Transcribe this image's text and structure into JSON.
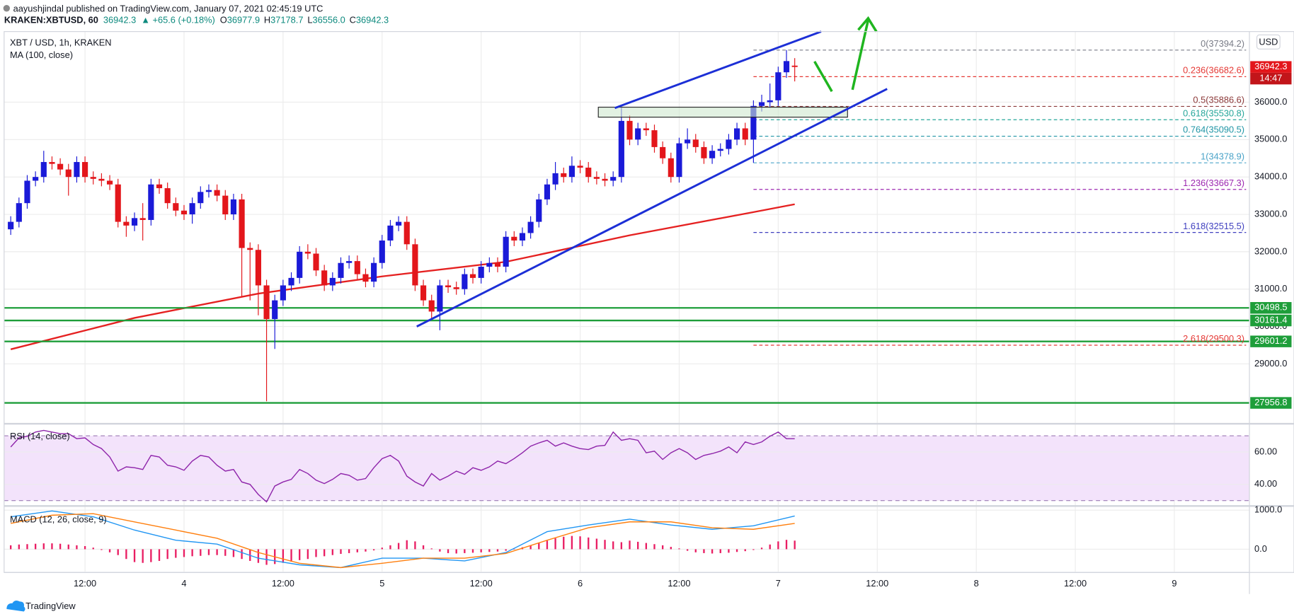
{
  "header": {
    "publisher": "aayushjindal published on TradingView.com, January 07, 2021 02:45:19 UTC",
    "symbol": "KRAKEN:XBTUSD, 60",
    "last": "36942.3",
    "change": "▲ +65.6 (+0.18%)",
    "ohlc": [
      {
        "key": "O",
        "value": "36977.9"
      },
      {
        "key": "H",
        "value": "37178.7"
      },
      {
        "key": "L",
        "value": "36556.0"
      },
      {
        "key": "C",
        "value": "36942.3"
      }
    ]
  },
  "footer": {
    "brand": "TradingView"
  },
  "chart_data": [
    {
      "type": "candlestick",
      "title": "XBT / USD, 1h, KRAKEN",
      "currency": "USD",
      "up_color": "#1a1ad8",
      "down_color": "#e3161b",
      "xlim": [
        -0.8,
        150.1
      ],
      "xticks": [
        {
          "value": 9,
          "label": "12:00"
        },
        {
          "value": 21,
          "label": "4"
        },
        {
          "value": 33,
          "label": "12:00"
        },
        {
          "value": 45,
          "label": "5"
        },
        {
          "value": 57,
          "label": "12:00"
        },
        {
          "value": 69,
          "label": "6"
        },
        {
          "value": 81,
          "label": "12:00"
        },
        {
          "value": 93,
          "label": "7"
        },
        {
          "value": 105,
          "label": "12:00"
        },
        {
          "value": 117,
          "label": "8"
        },
        {
          "value": 129,
          "label": "12:00"
        },
        {
          "value": 141,
          "label": "9"
        }
      ],
      "ylim": [
        27844,
        37889
      ],
      "yticks": [
        {
          "value": 36000,
          "label": "36000.0"
        },
        {
          "value": 35000,
          "label": "35000.0"
        },
        {
          "value": 34000,
          "label": "34000.0"
        },
        {
          "value": 33000,
          "label": "33000.0"
        },
        {
          "value": 32000,
          "label": "32000.0"
        },
        {
          "value": 31000,
          "label": "31000.0"
        },
        {
          "value": 30000,
          "label": "30000.0"
        },
        {
          "value": 29000,
          "label": "29000.0"
        }
      ],
      "grid": true,
      "open": [
        32600,
        32800,
        33300,
        33900,
        34000,
        34400,
        34350,
        34200,
        34000,
        34400,
        34000,
        33950,
        33900,
        33800,
        32800,
        32700,
        32900,
        32850,
        33800,
        33700,
        33300,
        33100,
        33000,
        33300,
        33600,
        33650,
        33500,
        33000,
        33400,
        32100,
        32050,
        31100,
        30200,
        30700,
        31100,
        31300,
        32000,
        31950,
        31500,
        31100,
        31300,
        31700,
        31750,
        31400,
        31200,
        31700,
        32300,
        32700,
        32800,
        32200,
        31100,
        30700,
        30400,
        31100,
        31050,
        31000,
        31400,
        31300,
        31600,
        31700,
        31600,
        32400,
        32300,
        32500,
        32800,
        33400,
        33800,
        34100,
        34000,
        34300,
        34250,
        34000,
        33950,
        33900,
        34000,
        35500,
        35000,
        35300,
        35250,
        34800,
        34500,
        34000,
        34900,
        35000,
        34800,
        34500,
        34700,
        34750,
        35000,
        35300,
        35000,
        35900,
        36000,
        36050,
        36800,
        36977.9
      ],
      "high": [
        32950,
        33450,
        34050,
        34150,
        34700,
        34550,
        34500,
        34350,
        34550,
        34550,
        34150,
        34100,
        34050,
        33950,
        32950,
        33050,
        33300,
        33950,
        33950,
        33850,
        33450,
        33250,
        33450,
        33750,
        33800,
        33800,
        33650,
        33550,
        33550,
        32250,
        32200,
        31250,
        30850,
        31250,
        31450,
        32150,
        32200,
        32100,
        31650,
        31450,
        31850,
        31900,
        31900,
        31550,
        31850,
        32450,
        32850,
        32950,
        32950,
        32350,
        31250,
        30850,
        31250,
        31250,
        31200,
        31550,
        31550,
        31750,
        31850,
        31850,
        32550,
        32550,
        32650,
        32950,
        33550,
        33950,
        34400,
        34250,
        34550,
        34450,
        34400,
        34150,
        34100,
        34150,
        35850,
        35650,
        35450,
        35450,
        35400,
        34950,
        34650,
        35050,
        35300,
        35150,
        34950,
        34850,
        34900,
        35150,
        35450,
        35450,
        36050,
        36200,
        36500,
        36950,
        37394.2,
        37178.7
      ],
      "low": [
        32450,
        32650,
        33150,
        33750,
        33850,
        34200,
        34050,
        33500,
        33850,
        33850,
        33800,
        33750,
        33650,
        32650,
        32400,
        32550,
        32300,
        32700,
        33550,
        33150,
        32950,
        32850,
        32750,
        33150,
        33450,
        33350,
        32850,
        32850,
        30800,
        30700,
        30300,
        28000,
        29400,
        30550,
        30950,
        31150,
        31800,
        31350,
        30950,
        30950,
        31150,
        31550,
        31250,
        31050,
        31050,
        31550,
        32150,
        32550,
        32050,
        30950,
        30550,
        30200,
        29900,
        30900,
        30850,
        30850,
        31150,
        31150,
        31450,
        31450,
        31450,
        32150,
        32150,
        32350,
        32650,
        33250,
        33650,
        33850,
        33850,
        34100,
        33850,
        33800,
        33750,
        33750,
        33850,
        34850,
        34850,
        35100,
        34650,
        34350,
        33850,
        33850,
        34750,
        34650,
        34350,
        34350,
        34550,
        34600,
        34850,
        34850,
        34378.9,
        35750,
        35850,
        35900,
        36650,
        36556.0
      ],
      "close": [
        32800,
        33300,
        33900,
        34000,
        34400,
        34350,
        34200,
        34000,
        34400,
        34000,
        33950,
        33900,
        33800,
        32800,
        32700,
        32900,
        32850,
        33800,
        33700,
        33300,
        33100,
        33000,
        33300,
        33600,
        33650,
        33500,
        33000,
        33400,
        32100,
        32050,
        31100,
        30200,
        30700,
        31100,
        31300,
        32000,
        31950,
        31500,
        31100,
        31300,
        31700,
        31750,
        31400,
        31200,
        31700,
        32300,
        32700,
        32800,
        32200,
        31100,
        30700,
        30400,
        31100,
        31050,
        31000,
        31400,
        31300,
        31600,
        31700,
        31600,
        32400,
        32300,
        32500,
        32800,
        33400,
        33800,
        34100,
        34000,
        34300,
        34250,
        34000,
        33950,
        33900,
        34000,
        35500,
        35000,
        35300,
        35250,
        34800,
        34500,
        34000,
        34900,
        35000,
        34800,
        34500,
        34700,
        34750,
        35000,
        35300,
        35000,
        35900,
        36000,
        36050,
        36800,
        37100,
        36942.3
      ],
      "overlays": [
        {
          "name": "MA (100, close)",
          "color": "#e52121",
          "x": [
            0,
            15,
            30,
            45,
            60,
            75,
            90,
            95
          ],
          "values": [
            29390,
            30230,
            30880,
            31340,
            31730,
            32440,
            33060,
            33270
          ]
        }
      ],
      "levels": [
        30498.5,
        30161.4,
        29601.2,
        27956.8
      ],
      "level_color": "#1e9e3a",
      "fib_levels": [
        {
          "value": 37394.2,
          "label": "0(37394.2)",
          "color": "#787b86"
        },
        {
          "value": 36682.6,
          "label": "0.236(36682.6)",
          "color": "#e53935"
        },
        {
          "value": 35886.6,
          "label": "0.5(35886.6)",
          "color": "#8d3b3b"
        },
        {
          "value": 35530.8,
          "label": "0.618(35530.8)",
          "color": "#26a69a"
        },
        {
          "value": 35090.5,
          "label": "0.764(35090.5)",
          "color": "#2196a6"
        },
        {
          "value": 34378.9,
          "label": "1(34378.9)",
          "color": "#4aa3c8"
        },
        {
          "value": 33667.3,
          "label": "1.236(33667.3)",
          "color": "#9c27b0"
        },
        {
          "value": 32515.5,
          "label": "1.618(32515.5)",
          "color": "#3f3fbf"
        },
        {
          "value": 29500.3,
          "label": "2.618(29500.3)",
          "color": "#e53935"
        }
      ],
      "fib_start": 90,
      "last_price": 36942.3,
      "countdown": "14:47"
    },
    {
      "type": "line",
      "title": "RSI (14, close)",
      "color": "#8e24aa",
      "ylim": [
        27.7,
        76.4
      ],
      "yticks": [
        {
          "value": 60,
          "label": "60.00"
        },
        {
          "value": 40,
          "label": "40.00"
        }
      ],
      "bands": [
        30,
        70
      ],
      "band_color": "#f3e3fb",
      "values": [
        63.1,
        68.7,
        69.7,
        72.3,
        73.3,
        72.3,
        71.3,
        71.3,
        68.2,
        68.7,
        64.6,
        62.1,
        56.9,
        48.2,
        50.8,
        50.3,
        49.2,
        57.9,
        56.9,
        51.8,
        50.8,
        48.7,
        54.4,
        57.9,
        56.9,
        51.8,
        48.2,
        49.2,
        41.5,
        40.0,
        33.8,
        29.2,
        39.0,
        41.5,
        43.1,
        49.2,
        46.7,
        42.6,
        40.5,
        43.1,
        46.7,
        45.6,
        42.6,
        43.6,
        50.3,
        55.9,
        57.9,
        54.4,
        45.1,
        41.5,
        39.0,
        46.7,
        42.6,
        45.1,
        48.2,
        46.2,
        50.3,
        48.7,
        50.8,
        54.4,
        52.8,
        55.9,
        59.5,
        63.6,
        65.6,
        67.2,
        63.6,
        65.6,
        63.6,
        62.1,
        61.5,
        63.6,
        64.1,
        72.3,
        67.2,
        68.2,
        67.2,
        59.5,
        60.5,
        55.4,
        59.5,
        62.1,
        59.5,
        55.4,
        57.9,
        59.0,
        60.5,
        63.1,
        59.5,
        66.2,
        64.6,
        66.2,
        69.7,
        72.3,
        68.2,
        68.2
      ]
    },
    {
      "type": "macd",
      "title": "MACD (12, 26, close, 9)",
      "ylim": [
        -574,
        1043
      ],
      "yticks": [
        {
          "value": 1000,
          "label": "1000.0"
        },
        {
          "value": 0,
          "label": "0.0"
        }
      ],
      "x": [
        0,
        5,
        10,
        15,
        20,
        25,
        30,
        35,
        40,
        45,
        50,
        55,
        60,
        65,
        70,
        75,
        80,
        85,
        90,
        95
      ],
      "series": [
        {
          "color": "#2196f3",
          "values": [
            830,
            980,
            830,
            490,
            230,
            130,
            -230,
            -400,
            -470,
            -230,
            -230,
            -300,
            -85,
            450,
            620,
            770,
            620,
            510,
            600,
            850
          ]
        },
        {
          "color": "#ff7f0e",
          "values": [
            660,
            870,
            910,
            700,
            490,
            280,
            -85,
            -360,
            -470,
            -360,
            -230,
            -230,
            -110,
            230,
            550,
            700,
            700,
            550,
            510,
            660
          ]
        }
      ],
      "histogram": {
        "color": "#e91e63",
        "values": [
          100,
          120,
          130,
          140,
          150,
          150,
          140,
          120,
          100,
          80,
          40,
          -20,
          -80,
          -150,
          -250,
          -330,
          -350,
          -330,
          -300,
          -250,
          -220,
          -200,
          -180,
          -170,
          -150,
          -150,
          -170,
          -200,
          -250,
          -300,
          -350,
          -400,
          -380,
          -350,
          -320,
          -280,
          -250,
          -200,
          -180,
          -150,
          -120,
          -100,
          -80,
          -60,
          -30,
          40,
          100,
          160,
          230,
          200,
          100,
          20,
          -60,
          -100,
          -110,
          -100,
          -90,
          -80,
          -70,
          -60,
          -40,
          0,
          50,
          100,
          160,
          220,
          280,
          320,
          340,
          330,
          300,
          270,
          240,
          200,
          180,
          220,
          190,
          160,
          130,
          100,
          60,
          20,
          -40,
          -80,
          -100,
          -110,
          -100,
          -90,
          -70,
          -50,
          -20,
          40,
          120,
          200,
          240,
          220
        ]
      }
    }
  ]
}
